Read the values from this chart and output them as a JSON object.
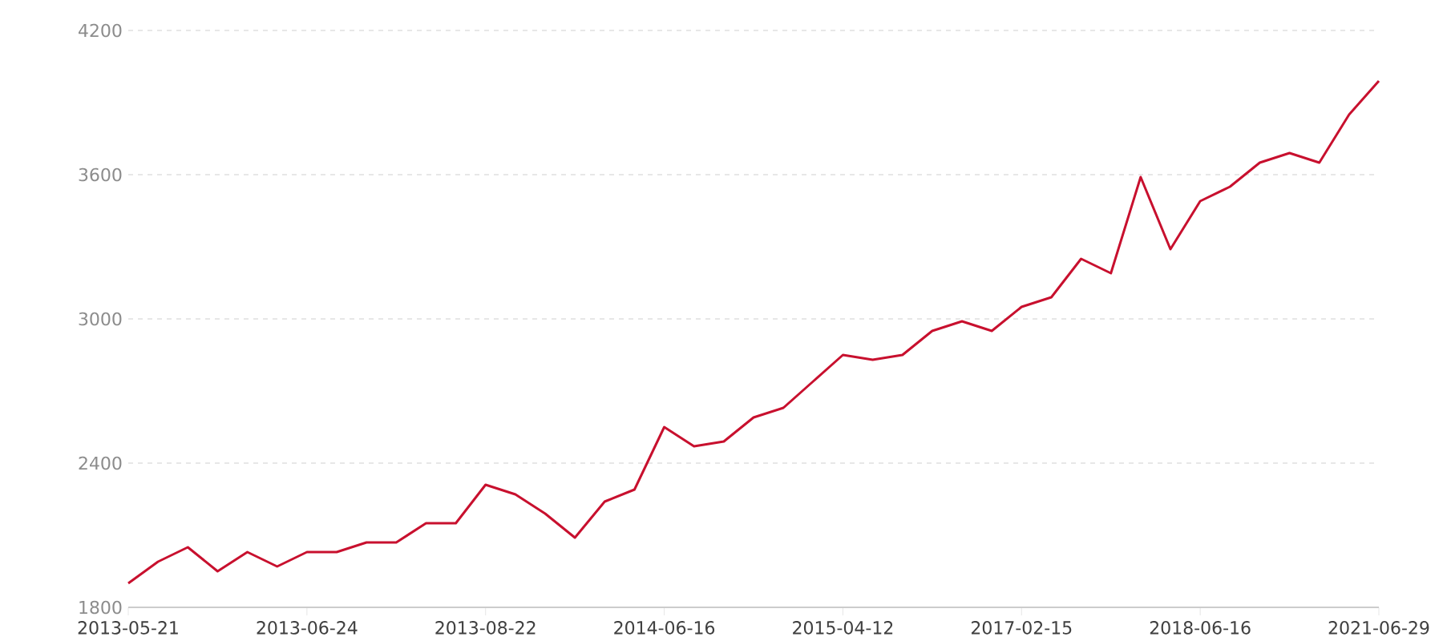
{
  "chart_data": {
    "type": "line",
    "categories": [
      "2013-05-21",
      null,
      null,
      null,
      null,
      null,
      "2013-06-24",
      null,
      null,
      null,
      null,
      null,
      "2013-08-22",
      null,
      null,
      null,
      null,
      null,
      "2014-06-16",
      null,
      null,
      null,
      null,
      null,
      "2015-04-12",
      null,
      null,
      null,
      null,
      null,
      "2017-02-15",
      null,
      null,
      null,
      null,
      null,
      "2018-06-16",
      null,
      null,
      null,
      null,
      null,
      "2021-06-29"
    ],
    "series": [
      {
        "color": "#c8102e",
        "values": [
          1900,
          1990,
          2050,
          1950,
          2030,
          1970,
          2030,
          2030,
          2070,
          2070,
          2150,
          2150,
          2310,
          2270,
          2190,
          2090,
          2240,
          2290,
          2550,
          2470,
          2490,
          2590,
          2630,
          2740,
          2850,
          2830,
          2850,
          2950,
          2990,
          2950,
          3050,
          3090,
          3250,
          3190,
          3590,
          3290,
          3490,
          3550,
          3650,
          3690,
          3650,
          3850,
          3990
        ]
      }
    ],
    "ylim": [
      1800,
      4200
    ],
    "yticks": [
      1800,
      2400,
      3000,
      3600,
      4200
    ],
    "grid": "y",
    "marker": "none",
    "line_style": "solid"
  }
}
